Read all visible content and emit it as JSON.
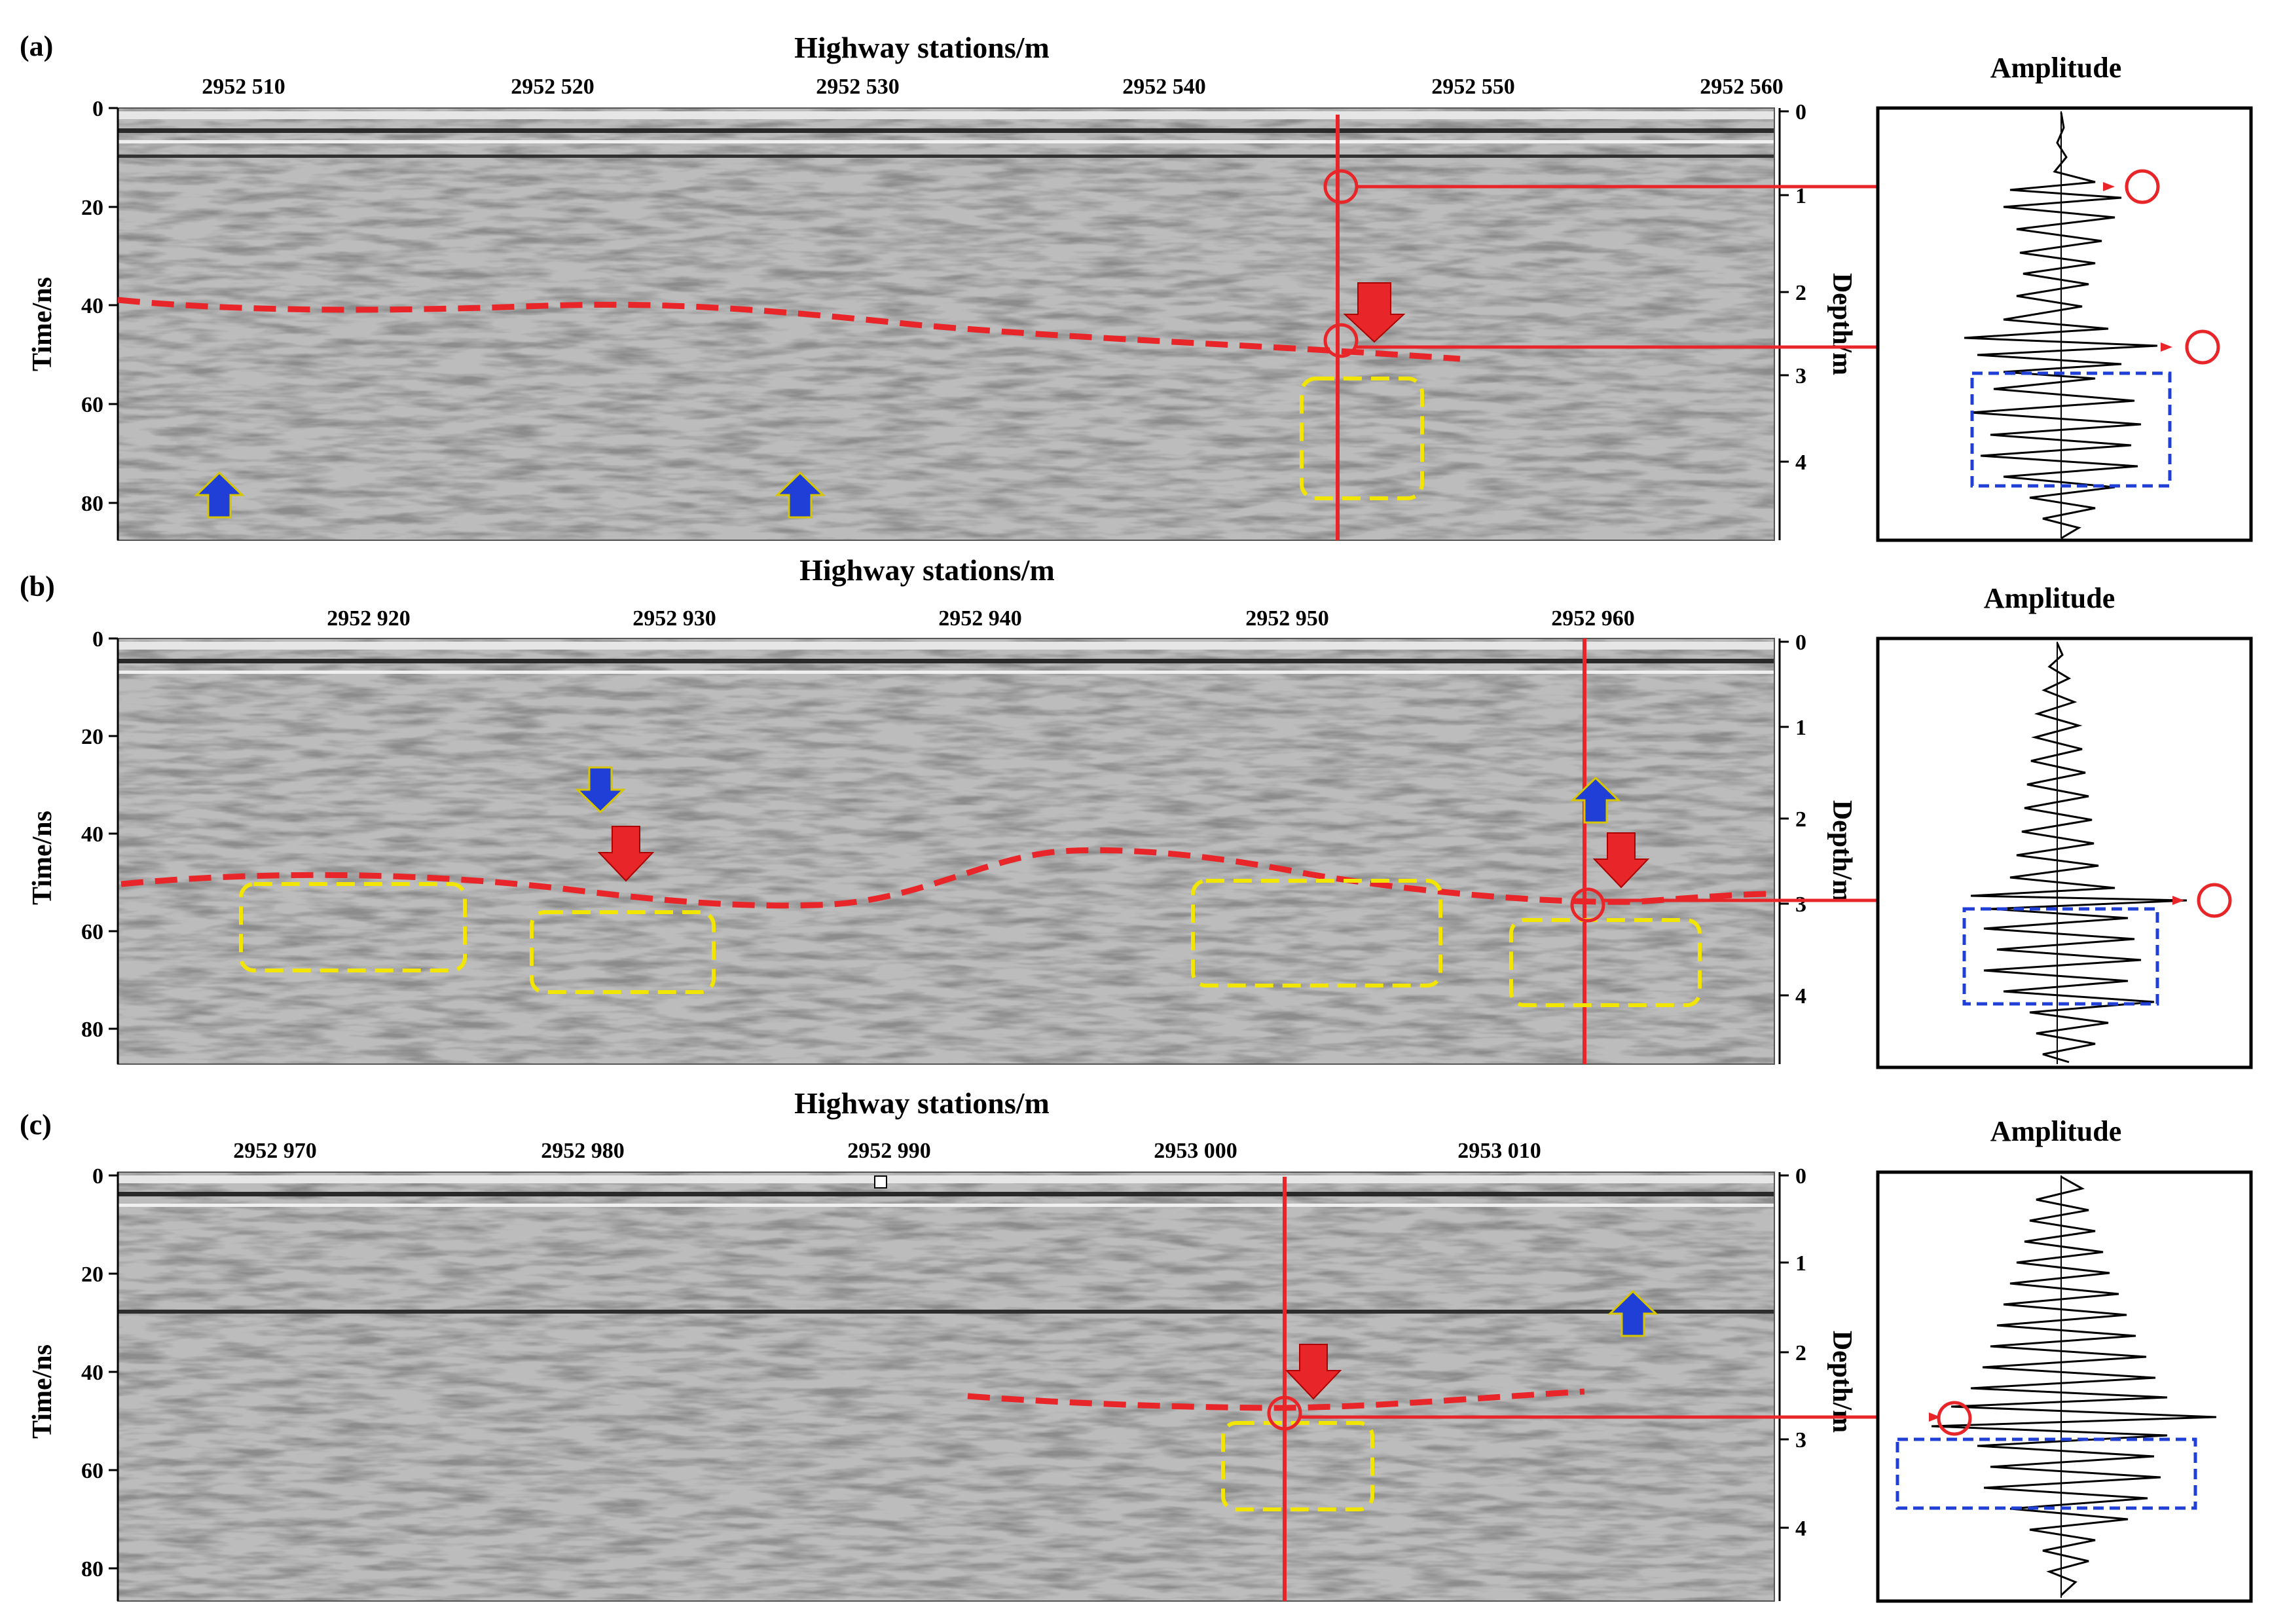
{
  "xlabel": "Highway stations/m",
  "ylabel_left": "Time/ns",
  "ylabel_right": "Depth/m",
  "trace_title": "Amplitude",
  "time_ticks": [
    "0",
    "20",
    "40",
    "60",
    "80"
  ],
  "depth_ticks": [
    "0",
    "1",
    "2",
    "3",
    "4"
  ],
  "colors": {
    "interface_line": "#e8262a",
    "anomaly_box": "#f2e600",
    "trace_box": "#1f3fd6",
    "small_arrow": "#1f3fd6",
    "big_arrow": "#e8262a",
    "radargram_mid": "#8c8c8c"
  },
  "panels": [
    {
      "tag": "(a)",
      "station_ticks": [
        "2952 510",
        "2952 520",
        "2952 530",
        "2952 540",
        "2952 550",
        "2952 560"
      ]
    },
    {
      "tag": "(b)",
      "station_ticks": [
        "2952 920",
        "2952 930",
        "2952 940",
        "2952 950",
        "2952 960"
      ]
    },
    {
      "tag": "(c)",
      "station_ticks": [
        "2952 970",
        "2952 980",
        "2952 990",
        "2953 000",
        "2953 010"
      ]
    }
  ]
}
